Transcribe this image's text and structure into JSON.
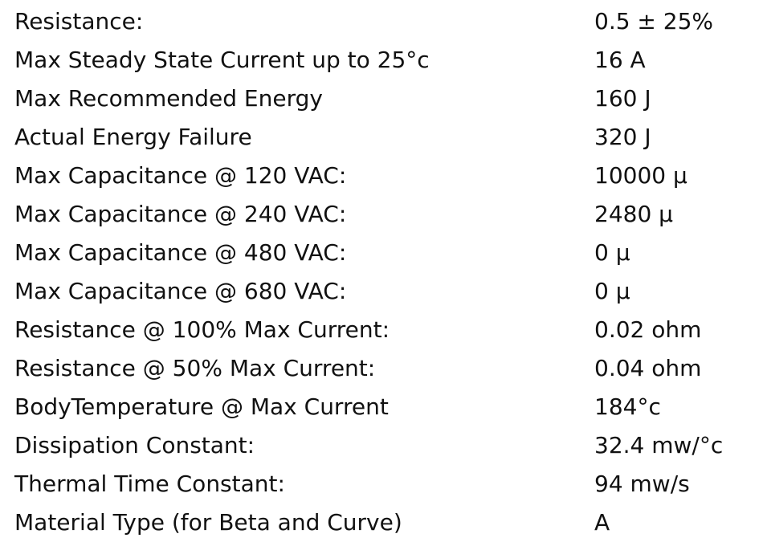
{
  "table": {
    "rows": [
      [
        "Resistance:",
        "0.5 ± 25%"
      ],
      [
        "Max Steady State Current up to 25°c",
        "16 A"
      ],
      [
        "Max Recommended Energy",
        "160 J"
      ],
      [
        "Actual Energy Failure",
        "320 J"
      ],
      [
        "Max Capacitance @ 120 VAC:",
        "10000 μ"
      ],
      [
        "Max Capacitance @ 240 VAC:",
        "2480 μ"
      ],
      [
        "Max Capacitance @ 480 VAC:",
        "0 μ"
      ],
      [
        "Max Capacitance @ 680 VAC:",
        "0 μ"
      ],
      [
        "Resistance @ 100% Max Current:",
        "0.02 ohm"
      ],
      [
        "Resistance @ 50% Max Current:",
        "0.04 ohm"
      ],
      [
        "BodyTemperature @ Max Current",
        "184°c"
      ],
      [
        "Dissipation Constant:",
        "32.4 mw/°c"
      ],
      [
        "Thermal Time Constant:",
        "94 mw/s"
      ],
      [
        "Material Type (for Beta and Curve)",
        "A"
      ]
    ]
  }
}
